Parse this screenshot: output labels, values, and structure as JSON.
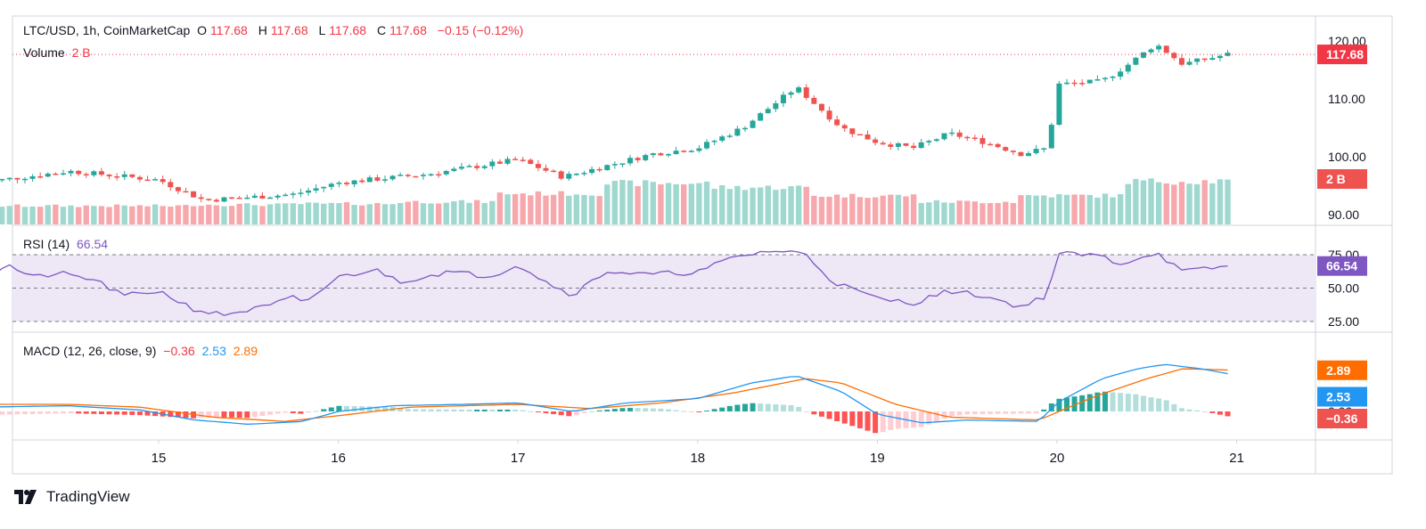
{
  "header": {
    "symbol": "LTC/USD, 1h, CoinMarketCap",
    "open_label": "O",
    "open": "117.68",
    "high_label": "H",
    "high": "117.68",
    "low_label": "L",
    "low": "117.68",
    "close_label": "C",
    "close": "117.68",
    "change": "−0.15 (−0.12%)",
    "volume_label": "Volume",
    "volume": "2 B"
  },
  "rsi_legend": {
    "label": "RSI (14)",
    "value": "66.54"
  },
  "macd_legend": {
    "label": "MACD (12, 26, close, 9)",
    "hist": "−0.36",
    "macd": "2.53",
    "signal": "2.89"
  },
  "price_axis": {
    "ticks": [
      "120.00",
      "110.00",
      "100.00",
      "90.00"
    ],
    "last_price": "117.68",
    "volume_badge": "2 B"
  },
  "rsi_axis": {
    "ticks": [
      "75.00",
      "50.00",
      "25.00"
    ],
    "badge": "66.54"
  },
  "macd_axis": {
    "ticks": [
      "0.00"
    ],
    "badge_signal": "2.89",
    "badge_macd": "2.53",
    "badge_hist": "−0.36"
  },
  "time_axis": {
    "ticks": [
      "15",
      "16",
      "17",
      "18",
      "19",
      "20",
      "21"
    ]
  },
  "brand": {
    "name": "TradingView"
  },
  "colors": {
    "up": "#26a69a",
    "down": "#ef5350",
    "vol_up": "#9fd8cf",
    "vol_down": "#f7a8ad",
    "rsi": "#7e57c2",
    "rsi_band": "#ede7f6",
    "macd": "#2196f3",
    "signal": "#ff6d00",
    "last_price": "#f23645",
    "text": "#131722"
  },
  "chart_data": {
    "type": "candlestick",
    "symbol": "LTC/USD",
    "interval": "1h",
    "price_range": [
      88,
      122
    ],
    "time_labels": [
      "15",
      "16",
      "17",
      "18",
      "19",
      "20",
      "21"
    ],
    "key_points": [
      {
        "t": 14.0,
        "price": 95.5
      },
      {
        "t": 14.5,
        "price": 97.5
      },
      {
        "t": 15.0,
        "price": 96.0
      },
      {
        "t": 15.25,
        "price": 92.5
      },
      {
        "t": 15.75,
        "price": 93.5
      },
      {
        "t": 16.0,
        "price": 95.5
      },
      {
        "t": 16.5,
        "price": 97.0
      },
      {
        "t": 17.0,
        "price": 99.5
      },
      {
        "t": 17.25,
        "price": 96.5
      },
      {
        "t": 17.5,
        "price": 98.5
      },
      {
        "t": 17.75,
        "price": 100.5
      },
      {
        "t": 18.0,
        "price": 101.5
      },
      {
        "t": 18.25,
        "price": 105.0
      },
      {
        "t": 18.55,
        "price": 112.0
      },
      {
        "t": 18.8,
        "price": 105.0
      },
      {
        "t": 19.0,
        "price": 102.5
      },
      {
        "t": 19.2,
        "price": 101.5
      },
      {
        "t": 19.4,
        "price": 104.0
      },
      {
        "t": 19.6,
        "price": 102.5
      },
      {
        "t": 19.8,
        "price": 100.5
      },
      {
        "t": 19.95,
        "price": 101.5
      },
      {
        "t": 20.0,
        "price": 112.5
      },
      {
        "t": 20.25,
        "price": 113.0
      },
      {
        "t": 20.4,
        "price": 116.0
      },
      {
        "t": 20.55,
        "price": 119.5
      },
      {
        "t": 20.7,
        "price": 116.0
      },
      {
        "t": 20.95,
        "price": 117.7
      }
    ],
    "volume": {
      "last": "2 B",
      "profile": [
        0.45,
        0.45,
        0.48,
        0.5,
        0.55,
        0.75,
        1.0,
        0.9,
        0.7,
        0.55,
        0.7,
        1.05
      ]
    },
    "rsi": {
      "period": 14,
      "last": 66.54,
      "levels": [
        25,
        50,
        75
      ],
      "key_points": [
        {
          "t": 14.0,
          "v": 52
        },
        {
          "t": 14.15,
          "v": 68
        },
        {
          "t": 14.3,
          "v": 58
        },
        {
          "t": 14.45,
          "v": 61
        },
        {
          "t": 14.65,
          "v": 56
        },
        {
          "t": 14.8,
          "v": 44
        },
        {
          "t": 15.0,
          "v": 48
        },
        {
          "t": 15.2,
          "v": 34
        },
        {
          "t": 15.35,
          "v": 30
        },
        {
          "t": 15.6,
          "v": 36
        },
        {
          "t": 15.75,
          "v": 43
        },
        {
          "t": 15.8,
          "v": 38
        },
        {
          "t": 16.0,
          "v": 58
        },
        {
          "t": 16.2,
          "v": 64
        },
        {
          "t": 16.35,
          "v": 55
        },
        {
          "t": 16.6,
          "v": 62
        },
        {
          "t": 16.85,
          "v": 59
        },
        {
          "t": 17.0,
          "v": 68
        },
        {
          "t": 17.15,
          "v": 55
        },
        {
          "t": 17.3,
          "v": 45
        },
        {
          "t": 17.5,
          "v": 63
        },
        {
          "t": 17.7,
          "v": 60
        },
        {
          "t": 18.0,
          "v": 62
        },
        {
          "t": 18.2,
          "v": 73
        },
        {
          "t": 18.4,
          "v": 78
        },
        {
          "t": 18.6,
          "v": 76
        },
        {
          "t": 18.75,
          "v": 55
        },
        {
          "t": 19.0,
          "v": 42
        },
        {
          "t": 19.2,
          "v": 39
        },
        {
          "t": 19.4,
          "v": 48
        },
        {
          "t": 19.6,
          "v": 44
        },
        {
          "t": 19.8,
          "v": 36
        },
        {
          "t": 19.95,
          "v": 45
        },
        {
          "t": 20.0,
          "v": 76
        },
        {
          "t": 20.25,
          "v": 74
        },
        {
          "t": 20.35,
          "v": 68
        },
        {
          "t": 20.55,
          "v": 77
        },
        {
          "t": 20.7,
          "v": 62
        },
        {
          "t": 20.95,
          "v": 66.5
        }
      ]
    },
    "macd": {
      "fast": 12,
      "slow": 26,
      "signal_period": 9,
      "last_macd": 2.53,
      "last_signal": 2.89,
      "last_hist": -0.36,
      "macd_points": [
        {
          "t": 14.0,
          "v": 0.3
        },
        {
          "t": 14.5,
          "v": 0.4
        },
        {
          "t": 14.9,
          "v": 0.1
        },
        {
          "t": 15.2,
          "v": -0.6
        },
        {
          "t": 15.5,
          "v": -0.9
        },
        {
          "t": 15.8,
          "v": -0.7
        },
        {
          "t": 16.0,
          "v": 0.0
        },
        {
          "t": 16.3,
          "v": 0.4
        },
        {
          "t": 16.7,
          "v": 0.5
        },
        {
          "t": 17.0,
          "v": 0.6
        },
        {
          "t": 17.3,
          "v": 0.0
        },
        {
          "t": 17.6,
          "v": 0.6
        },
        {
          "t": 18.0,
          "v": 0.9
        },
        {
          "t": 18.3,
          "v": 2.0
        },
        {
          "t": 18.55,
          "v": 2.5
        },
        {
          "t": 18.8,
          "v": 1.4
        },
        {
          "t": 19.0,
          "v": -0.2
        },
        {
          "t": 19.25,
          "v": -0.8
        },
        {
          "t": 19.5,
          "v": -0.6
        },
        {
          "t": 19.9,
          "v": -0.7
        },
        {
          "t": 20.0,
          "v": 0.6
        },
        {
          "t": 20.25,
          "v": 2.3
        },
        {
          "t": 20.45,
          "v": 3.0
        },
        {
          "t": 20.6,
          "v": 3.3
        },
        {
          "t": 20.8,
          "v": 3.0
        },
        {
          "t": 21.0,
          "v": 2.53
        }
      ],
      "signal_points": [
        {
          "t": 14.0,
          "v": 0.5
        },
        {
          "t": 14.5,
          "v": 0.5
        },
        {
          "t": 14.9,
          "v": 0.3
        },
        {
          "t": 15.3,
          "v": -0.4
        },
        {
          "t": 15.7,
          "v": -0.7
        },
        {
          "t": 16.0,
          "v": -0.3
        },
        {
          "t": 16.4,
          "v": 0.3
        },
        {
          "t": 17.0,
          "v": 0.5
        },
        {
          "t": 17.4,
          "v": 0.2
        },
        {
          "t": 17.8,
          "v": 0.6
        },
        {
          "t": 18.2,
          "v": 1.3
        },
        {
          "t": 18.6,
          "v": 2.3
        },
        {
          "t": 18.8,
          "v": 2.0
        },
        {
          "t": 19.1,
          "v": 0.5
        },
        {
          "t": 19.4,
          "v": -0.4
        },
        {
          "t": 19.9,
          "v": -0.6
        },
        {
          "t": 20.2,
          "v": 1.0
        },
        {
          "t": 20.5,
          "v": 2.3
        },
        {
          "t": 20.7,
          "v": 3.0
        },
        {
          "t": 21.0,
          "v": 2.89
        }
      ]
    }
  }
}
